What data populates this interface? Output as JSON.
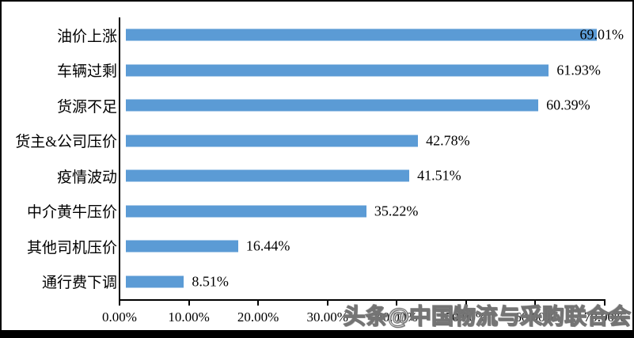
{
  "chart_data": {
    "type": "bar",
    "orientation": "horizontal",
    "title": "",
    "categories": [
      "油价上涨",
      "车辆过剩",
      "货源不足",
      "货主&公司压价",
      "疫情波动",
      "中介黄牛压价",
      "其他司机压价",
      "通行费下调"
    ],
    "values": [
      69.01,
      61.93,
      60.39,
      42.78,
      41.51,
      35.22,
      16.44,
      8.51
    ],
    "value_labels": [
      "69.01%",
      "61.93%",
      "60.39%",
      "42.78%",
      "41.51%",
      "35.22%",
      "16.44%",
      "8.51%"
    ],
    "x_ticks": [
      "0.00%",
      "10.00%",
      "20.00%",
      "30.00%",
      "40.00%",
      "50.00%",
      "60.00%",
      "70.00%"
    ],
    "xlim": [
      0,
      70
    ],
    "bar_color": "#5B9BD5",
    "axis_color": "#000000",
    "grid": false,
    "legend": "none"
  },
  "watermark": {
    "text": "头条@中国物流与采购联合会"
  },
  "frame": {
    "color": "#000000"
  }
}
